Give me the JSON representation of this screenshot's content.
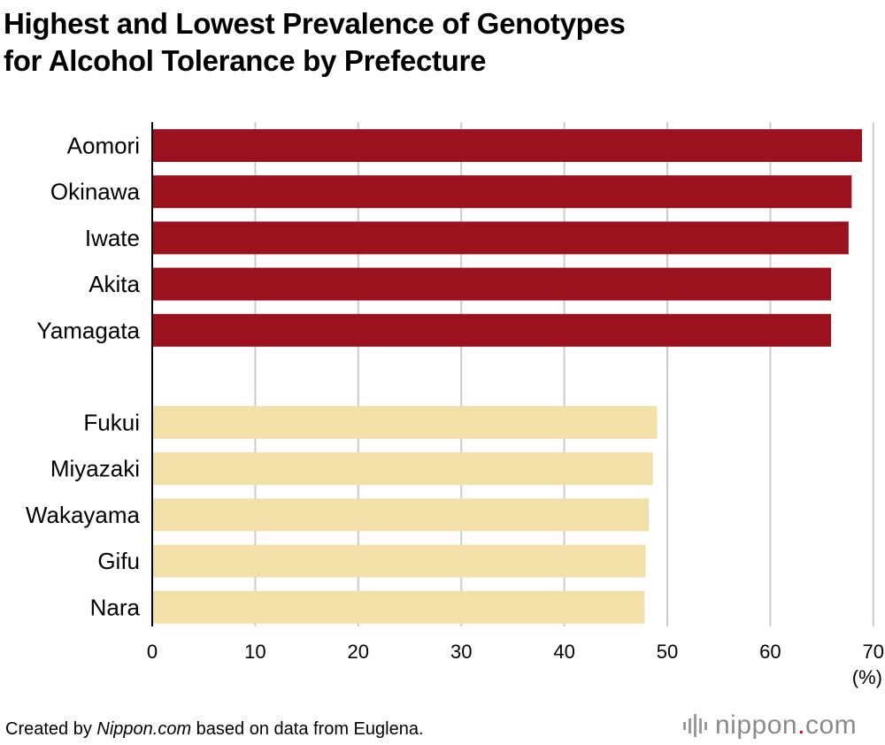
{
  "title": {
    "line1": "Highest and Lowest Prevalence of Genotypes",
    "line2": "for Alcohol Tolerance by Prefecture"
  },
  "colors": {
    "highest": "#9c111e",
    "lowest": "#f1e1a8",
    "grid": "#cccccc",
    "axis": "#000000"
  },
  "chart_data": {
    "type": "bar",
    "orientation": "horizontal",
    "title": "Highest and Lowest Prevalence of Genotypes for Alcohol Tolerance by Prefecture",
    "xlabel": "(%)",
    "ylabel": "",
    "xlim": [
      0,
      70
    ],
    "xticks": [
      0,
      10,
      20,
      30,
      40,
      50,
      60,
      70
    ],
    "grid": true,
    "series": [
      {
        "name": "Highest",
        "color": "#9c111e",
        "categories": [
          "Aomori",
          "Okinawa",
          "Iwate",
          "Akita",
          "Yamagata"
        ],
        "values": [
          68.9,
          67.9,
          67.6,
          65.9,
          65.9
        ]
      },
      {
        "name": "Lowest",
        "color": "#f1e1a8",
        "categories": [
          "Fukui",
          "Miyazaki",
          "Wakayama",
          "Gifu",
          "Nara"
        ],
        "values": [
          49.0,
          48.6,
          48.2,
          47.9,
          47.8
        ]
      }
    ]
  },
  "footer": {
    "prefix": "Created by ",
    "source_site": "Nippon.com",
    "suffix": " based on data from Euglena."
  },
  "logo": {
    "name": "nippon",
    "dot": ".",
    "tld": "com"
  }
}
